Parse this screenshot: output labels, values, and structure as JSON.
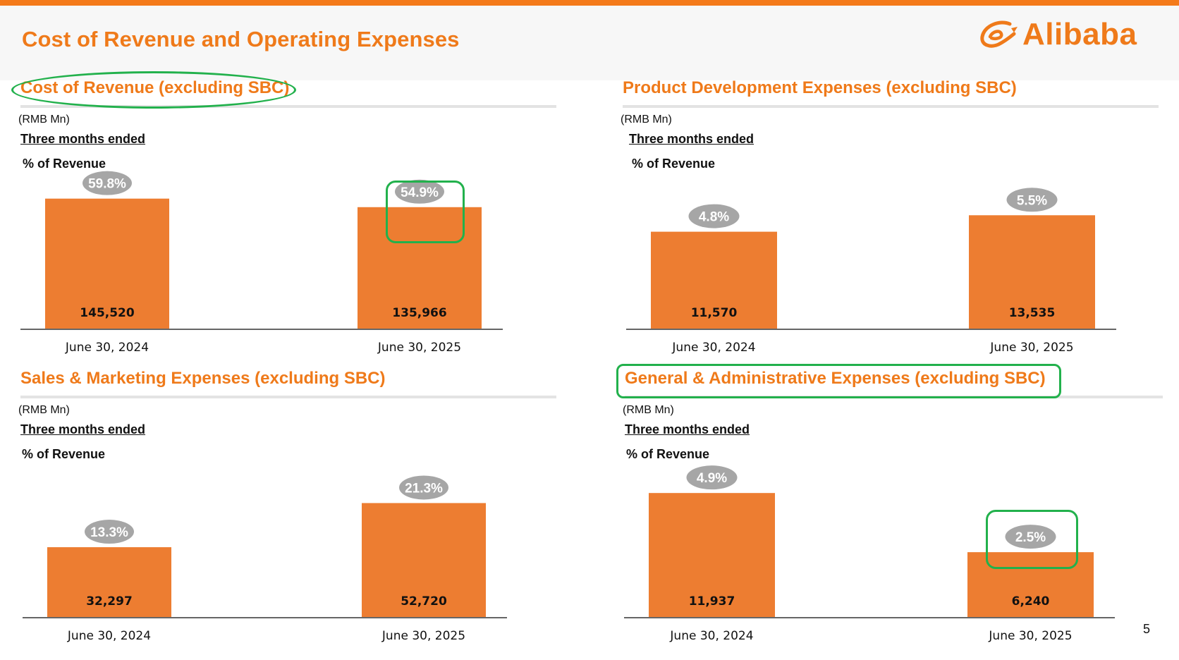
{
  "page_title": "Cost of Revenue and Operating Expenses",
  "logo_text": "Alibaba",
  "page_number": "5",
  "colors": {
    "accent": "#ef7a1a",
    "bar": "#ed7d31",
    "badge": "#a6a6a6",
    "highlight": "#22b14c"
  },
  "chart_data": [
    {
      "type": "bar",
      "title": "Cost of Revenue (excluding SBC)",
      "unit": "(RMB Mn)",
      "period_label": "Three months ended",
      "pct_label": "% of Revenue",
      "categories": [
        "June 30, 2024",
        "June 30, 2025"
      ],
      "values": [
        145520,
        135966
      ],
      "value_labels": [
        "145,520",
        "135,966"
      ],
      "pct_of_revenue": [
        "59.8%",
        "54.9%"
      ]
    },
    {
      "type": "bar",
      "title": "Product Development Expenses (excluding SBC)",
      "unit": "(RMB Mn)",
      "period_label": "Three months ended",
      "pct_label": "% of Revenue",
      "categories": [
        "June 30, 2024",
        "June 30, 2025"
      ],
      "values": [
        11570,
        13535
      ],
      "value_labels": [
        "11,570",
        "13,535"
      ],
      "pct_of_revenue": [
        "4.8%",
        "5.5%"
      ]
    },
    {
      "type": "bar",
      "title": "Sales & Marketing Expenses (excluding SBC)",
      "unit": "(RMB Mn)",
      "period_label": "Three months ended",
      "pct_label": "% of Revenue",
      "categories": [
        "June 30, 2024",
        "June 30, 2025"
      ],
      "values": [
        32297,
        52720
      ],
      "value_labels": [
        "32,297",
        "52,720"
      ],
      "pct_of_revenue": [
        "13.3%",
        "21.3%"
      ]
    },
    {
      "type": "bar",
      "title": "General & Administrative Expenses (excluding SBC)",
      "unit": "(RMB Mn)",
      "period_label": "Three months ended",
      "pct_label": "% of Revenue",
      "categories": [
        "June 30, 2024",
        "June 30, 2025"
      ],
      "values": [
        11937,
        6240
      ],
      "value_labels": [
        "11,937",
        "6,240"
      ],
      "pct_of_revenue": [
        "4.9%",
        "2.5%"
      ]
    }
  ]
}
